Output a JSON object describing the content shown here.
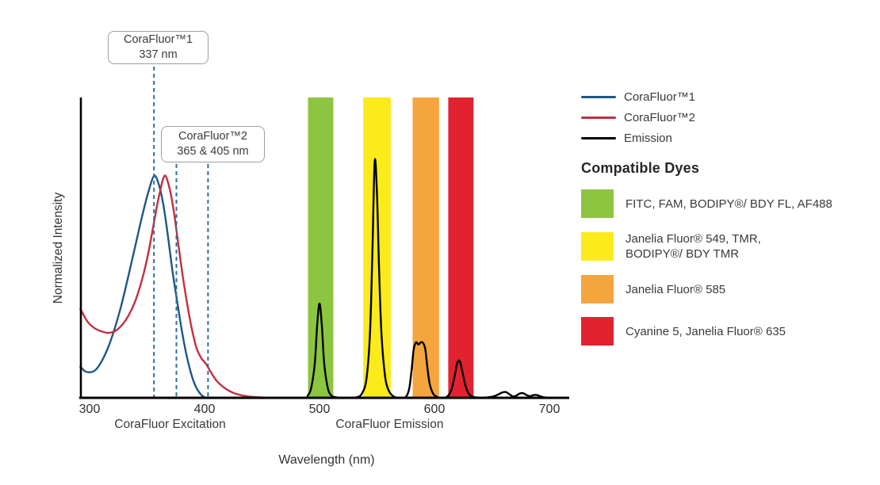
{
  "figure": {
    "y_axis_label": "Normalized Intensity",
    "x_axis_label": "Wavelength (nm)"
  },
  "callouts": [
    {
      "title": "CoraFluor™1",
      "subtitle": "337 nm"
    },
    {
      "title": "CoraFluor™2",
      "subtitle": "365 & 405 nm"
    }
  ],
  "legend": {
    "series": [
      {
        "label": "CoraFluor™1",
        "color": "#1F5788"
      },
      {
        "label": "CoraFluor™2",
        "color": "#C2303F"
      },
      {
        "label": "Emission",
        "color": "#000000"
      }
    ],
    "dyes_heading": "Compatible Dyes",
    "dyes": [
      {
        "name": "green",
        "color": "#8CC540",
        "label": "FITC, FAM, BODIPY®/ BDY FL, AF488"
      },
      {
        "name": "yellow",
        "color": "#FBEB1A",
        "label": "Janelia Fluor® 549, TMR,\nBODIPY®/ BDY TMR"
      },
      {
        "name": "orange",
        "color": "#F5A53E",
        "label": "Janelia Fluor® 585"
      },
      {
        "name": "red",
        "color": "#E32230",
        "label": "Cyanine 5, Janelia Fluor® 635"
      }
    ]
  },
  "chart_data": {
    "type": "line",
    "title": "",
    "xlabel": "Wavelength (nm)",
    "ylabel": "Normalized Intensity",
    "x_range": [
      292,
      718
    ],
    "y_range": [
      0,
      1.35
    ],
    "grid": false,
    "legend_position": "right",
    "x_ticks": [
      300,
      400,
      500,
      600,
      700
    ],
    "axis_sublabels": [
      {
        "text": "CoraFluor Excitation",
        "nm": 370
      },
      {
        "text": "CoraFluor Emission",
        "nm": 561
      }
    ],
    "marker_color": "#2F6F9F",
    "marker_lines": [
      {
        "nm": 356,
        "callout": 0
      },
      {
        "nm": 375.5,
        "callout": 1
      },
      {
        "nm": 403,
        "callout": 1
      }
    ],
    "bands": [
      {
        "name": "green",
        "color": "#8CC540",
        "nm_range": [
          490,
          512
        ]
      },
      {
        "name": "yellow",
        "color": "#FBEB1A",
        "nm_range": [
          538,
          562
        ]
      },
      {
        "name": "orange",
        "color": "#F5A53E",
        "nm_range": [
          581,
          604
        ]
      },
      {
        "name": "red",
        "color": "#E32230",
        "nm_range": [
          612,
          634
        ]
      }
    ],
    "series": [
      {
        "id": "corafluor1",
        "name": "CoraFluor™1 excitation",
        "color": "#1F5788",
        "points": [
          [
            292,
            0.14
          ],
          [
            296,
            0.12
          ],
          [
            300,
            0.115
          ],
          [
            305,
            0.125
          ],
          [
            310,
            0.16
          ],
          [
            316,
            0.225
          ],
          [
            322,
            0.315
          ],
          [
            328,
            0.425
          ],
          [
            334,
            0.555
          ],
          [
            340,
            0.69
          ],
          [
            346,
            0.825
          ],
          [
            351,
            0.925
          ],
          [
            356,
            1.0
          ],
          [
            360,
            0.965
          ],
          [
            364,
            0.875
          ],
          [
            368,
            0.735
          ],
          [
            372,
            0.575
          ],
          [
            376,
            0.44
          ],
          [
            380,
            0.31
          ],
          [
            384,
            0.2
          ],
          [
            388,
            0.115
          ],
          [
            392,
            0.055
          ],
          [
            396,
            0.02
          ],
          [
            399,
            0.006
          ],
          [
            401,
            0
          ]
        ]
      },
      {
        "id": "corafluor2",
        "name": "CoraFluor™2 excitation",
        "color": "#C2303F",
        "points": [
          [
            292,
            0.4
          ],
          [
            298,
            0.345
          ],
          [
            304,
            0.315
          ],
          [
            310,
            0.3
          ],
          [
            316,
            0.293
          ],
          [
            322,
            0.3
          ],
          [
            328,
            0.327
          ],
          [
            334,
            0.372
          ],
          [
            340,
            0.44
          ],
          [
            346,
            0.54
          ],
          [
            351,
            0.65
          ],
          [
            356,
            0.79
          ],
          [
            360,
            0.9
          ],
          [
            365,
            1.0
          ],
          [
            369,
            0.955
          ],
          [
            373,
            0.85
          ],
          [
            377,
            0.7
          ],
          [
            381,
            0.55
          ],
          [
            385,
            0.42
          ],
          [
            389,
            0.31
          ],
          [
            393,
            0.225
          ],
          [
            397,
            0.18
          ],
          [
            401,
            0.155
          ],
          [
            405,
            0.12
          ],
          [
            410,
            0.08
          ],
          [
            416,
            0.05
          ],
          [
            423,
            0.027
          ],
          [
            431,
            0.013
          ],
          [
            440,
            0.005
          ],
          [
            452,
            0.001
          ],
          [
            462,
            0
          ]
        ]
      },
      {
        "id": "emission",
        "name": "Emission",
        "color": "#000000",
        "points": [
          [
            450,
            0
          ],
          [
            485,
            0
          ],
          [
            490,
            0.012
          ],
          [
            493,
            0.05
          ],
          [
            496,
            0.16
          ],
          [
            498,
            0.33
          ],
          [
            500,
            0.425
          ],
          [
            502,
            0.33
          ],
          [
            504,
            0.16
          ],
          [
            507,
            0.05
          ],
          [
            510,
            0.012
          ],
          [
            515,
            0.002
          ],
          [
            522,
            0
          ],
          [
            532,
            0.002
          ],
          [
            537,
            0.02
          ],
          [
            541,
            0.09
          ],
          [
            544,
            0.3
          ],
          [
            546,
            0.65
          ],
          [
            548,
            1.065
          ],
          [
            550,
            0.92
          ],
          [
            552,
            0.55
          ],
          [
            554,
            0.28
          ],
          [
            557,
            0.1
          ],
          [
            560,
            0.035
          ],
          [
            564,
            0.008
          ],
          [
            569,
            0
          ],
          [
            575,
            0.004
          ],
          [
            578,
            0.04
          ],
          [
            580,
            0.12
          ],
          [
            582,
            0.22
          ],
          [
            584,
            0.25
          ],
          [
            586,
            0.24
          ],
          [
            588,
            0.25
          ],
          [
            590,
            0.248
          ],
          [
            592,
            0.22
          ],
          [
            594,
            0.13
          ],
          [
            596,
            0.06
          ],
          [
            599,
            0.018
          ],
          [
            603,
            0.003
          ],
          [
            608,
            0
          ],
          [
            612,
            0.01
          ],
          [
            615,
            0.04
          ],
          [
            618,
            0.11
          ],
          [
            620,
            0.16
          ],
          [
            622,
            0.165
          ],
          [
            624,
            0.125
          ],
          [
            627,
            0.055
          ],
          [
            630,
            0.018
          ],
          [
            634,
            0.004
          ],
          [
            640,
            0.001
          ],
          [
            646,
            0.002
          ],
          [
            651,
            0.006
          ],
          [
            655,
            0.014
          ],
          [
            659,
            0.024
          ],
          [
            662,
            0.026
          ],
          [
            665,
            0.017
          ],
          [
            668,
            0.007
          ],
          [
            671,
            0.009
          ],
          [
            674,
            0.019
          ],
          [
            677,
            0.021
          ],
          [
            680,
            0.013
          ],
          [
            683,
            0.007
          ],
          [
            686,
            0.012
          ],
          [
            689,
            0.013
          ],
          [
            692,
            0.007
          ],
          [
            696,
            0.002
          ],
          [
            702,
            0
          ]
        ]
      }
    ]
  }
}
